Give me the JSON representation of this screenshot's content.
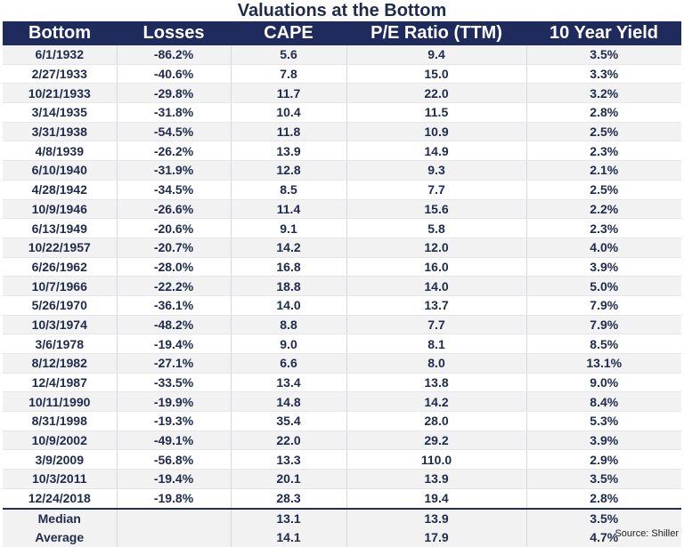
{
  "title": "Valuations at the Bottom",
  "columns": [
    "Bottom",
    "Losses",
    "CAPE",
    "P/E Ratio (TTM)",
    "10 Year Yield"
  ],
  "rows": [
    [
      "6/1/1932",
      "-86.2%",
      "5.6",
      "9.4",
      "3.5%"
    ],
    [
      "2/27/1933",
      "-40.6%",
      "7.8",
      "15.0",
      "3.3%"
    ],
    [
      "10/21/1933",
      "-29.8%",
      "11.7",
      "22.0",
      "3.2%"
    ],
    [
      "3/14/1935",
      "-31.8%",
      "10.4",
      "11.5",
      "2.8%"
    ],
    [
      "3/31/1938",
      "-54.5%",
      "11.8",
      "10.9",
      "2.5%"
    ],
    [
      "4/8/1939",
      "-26.2%",
      "13.9",
      "14.9",
      "2.3%"
    ],
    [
      "6/10/1940",
      "-31.9%",
      "12.8",
      "9.3",
      "2.1%"
    ],
    [
      "4/28/1942",
      "-34.5%",
      "8.5",
      "7.7",
      "2.5%"
    ],
    [
      "10/9/1946",
      "-26.6%",
      "11.4",
      "15.6",
      "2.2%"
    ],
    [
      "6/13/1949",
      "-20.6%",
      "9.1",
      "5.8",
      "2.3%"
    ],
    [
      "10/22/1957",
      "-20.7%",
      "14.2",
      "12.0",
      "4.0%"
    ],
    [
      "6/26/1962",
      "-28.0%",
      "16.8",
      "16.0",
      "3.9%"
    ],
    [
      "10/7/1966",
      "-22.2%",
      "18.8",
      "14.0",
      "5.0%"
    ],
    [
      "5/26/1970",
      "-36.1%",
      "14.0",
      "13.7",
      "7.9%"
    ],
    [
      "10/3/1974",
      "-48.2%",
      "8.8",
      "7.7",
      "7.9%"
    ],
    [
      "3/6/1978",
      "-19.4%",
      "9.0",
      "8.1",
      "8.5%"
    ],
    [
      "8/12/1982",
      "-27.1%",
      "6.6",
      "8.0",
      "13.1%"
    ],
    [
      "12/4/1987",
      "-33.5%",
      "13.4",
      "13.8",
      "9.0%"
    ],
    [
      "10/11/1990",
      "-19.9%",
      "14.8",
      "14.2",
      "8.4%"
    ],
    [
      "8/31/1998",
      "-19.3%",
      "35.4",
      "28.0",
      "5.3%"
    ],
    [
      "10/9/2002",
      "-49.1%",
      "22.0",
      "29.2",
      "3.9%"
    ],
    [
      "3/9/2009",
      "-56.8%",
      "13.3",
      "110.0",
      "2.9%"
    ],
    [
      "10/3/2011",
      "-19.4%",
      "20.1",
      "13.9",
      "3.5%"
    ],
    [
      "12/24/2018",
      "-19.8%",
      "28.3",
      "19.4",
      "2.8%"
    ]
  ],
  "summary": [
    [
      "Median",
      "",
      "13.1",
      "13.9",
      "3.5%"
    ],
    [
      "Average",
      "",
      "14.1",
      "17.9",
      "4.7%"
    ]
  ],
  "source": "Source: Shiller"
}
